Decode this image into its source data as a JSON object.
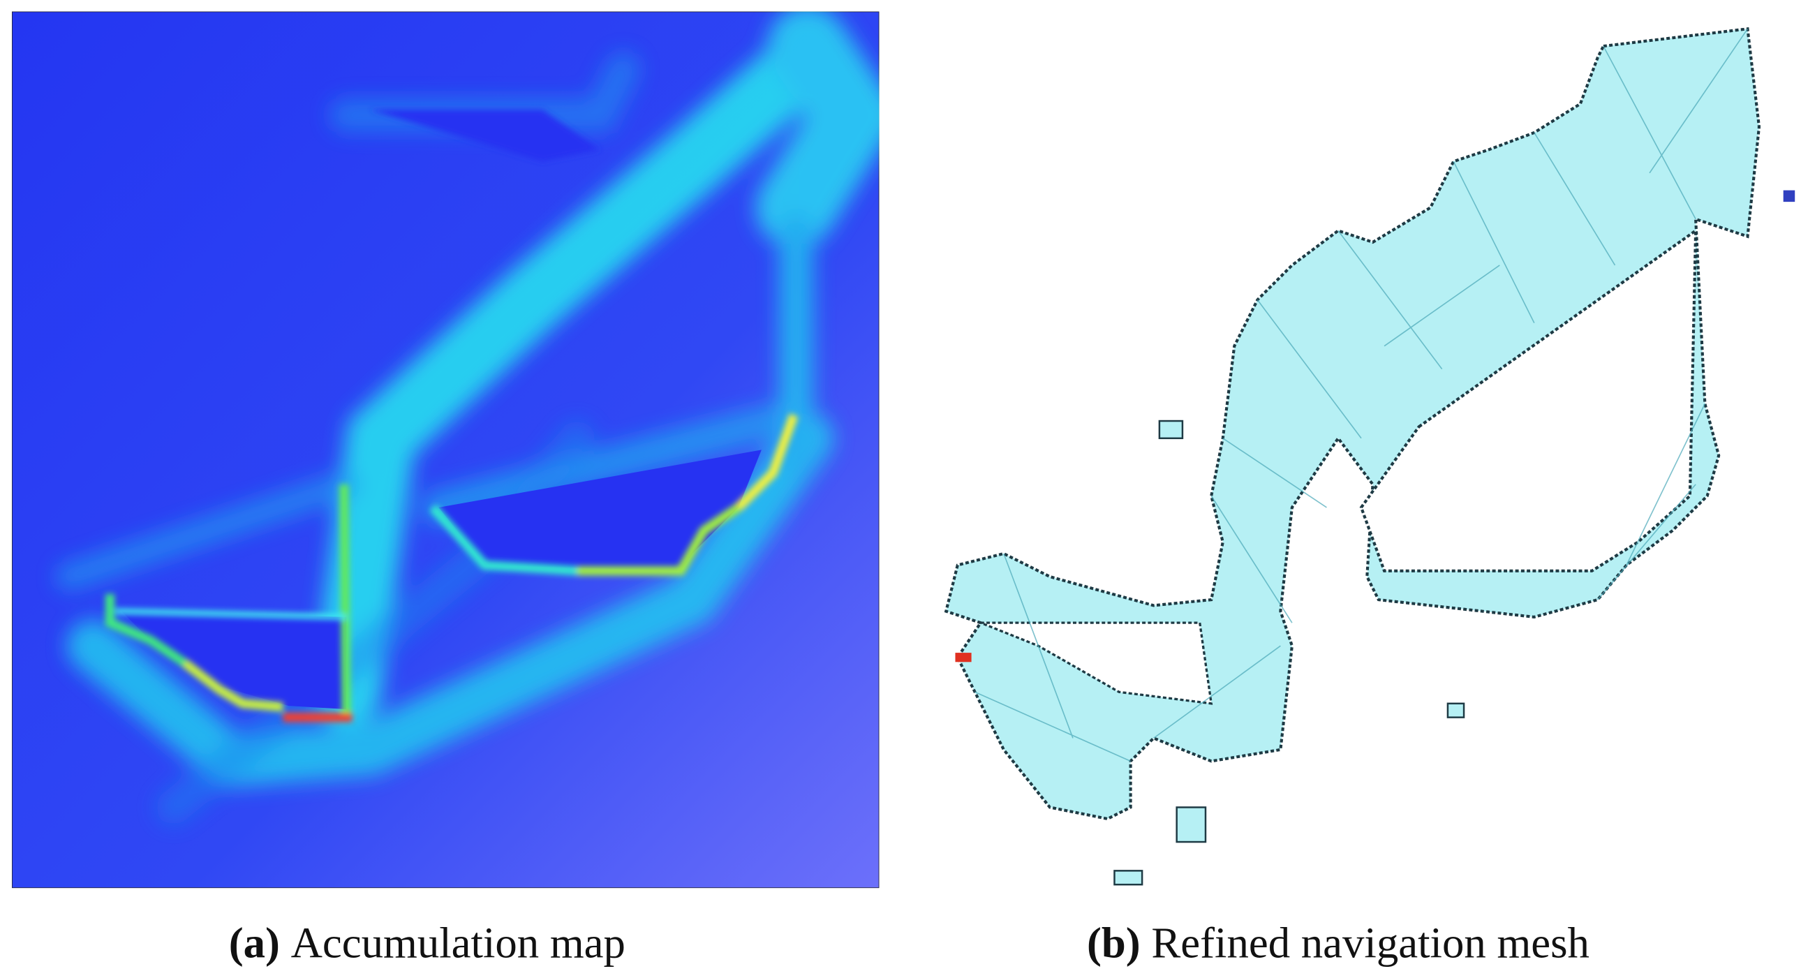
{
  "panels": [
    {
      "label": "(a)",
      "caption": "Accumulation map"
    },
    {
      "label": "(b)",
      "caption": "Refined navigation mesh"
    }
  ]
}
